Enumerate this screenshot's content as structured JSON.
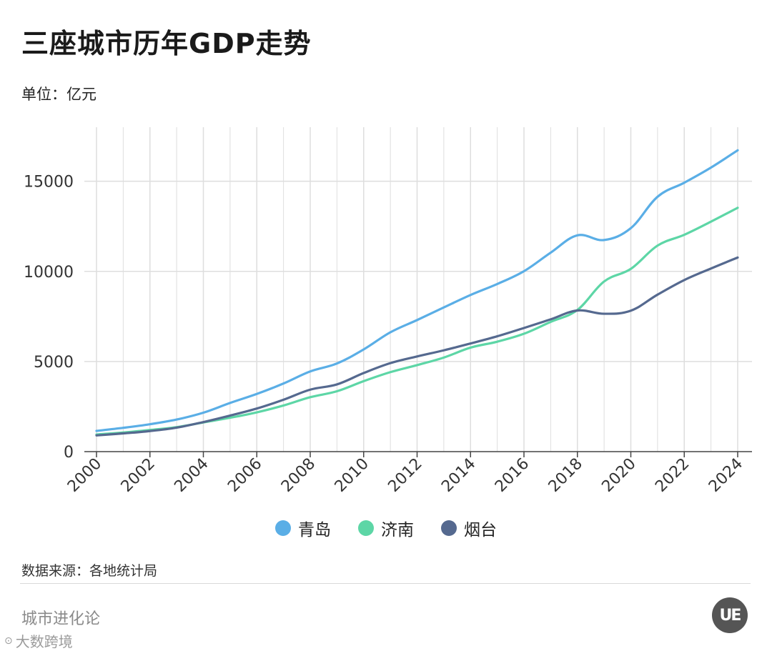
{
  "title": "三座城市历年GDP走势",
  "unit": "单位：亿元",
  "source": "数据来源：各地统计局",
  "brand": "城市进化论",
  "watermark": "大数跨境",
  "logo_text": "UE",
  "colors": {
    "qingdao": "#5aaee6",
    "jinan": "#5dd6a6",
    "yantai": "#55698f",
    "grid": "#dedede"
  },
  "chart_data": {
    "type": "line",
    "title": "三座城市历年GDP走势",
    "ylabel": "单位：亿元",
    "xlabel": "",
    "x": [
      2000,
      2001,
      2002,
      2003,
      2004,
      2005,
      2006,
      2007,
      2008,
      2009,
      2010,
      2011,
      2012,
      2013,
      2014,
      2015,
      2016,
      2017,
      2018,
      2019,
      2020,
      2021,
      2022,
      2023,
      2024
    ],
    "xticks": [
      "2000",
      "2002",
      "2004",
      "2006",
      "2008",
      "2010",
      "2012",
      "2014",
      "2016",
      "2018",
      "2020",
      "2022",
      "2024"
    ],
    "yticks": [
      0,
      5000,
      10000,
      15000
    ],
    "ylim": [
      0,
      18000
    ],
    "xlim": [
      2000,
      2024
    ],
    "grid": true,
    "legend_position": "bottom",
    "series": [
      {
        "name": "青岛",
        "color": "#5aaee6",
        "values": [
          1150,
          1320,
          1520,
          1780,
          2160,
          2700,
          3200,
          3780,
          4450,
          4890,
          5670,
          6620,
          7300,
          8000,
          8690,
          9300,
          10010,
          11040,
          12000,
          11740,
          12400,
          14140,
          14920,
          15760,
          16720
        ]
      },
      {
        "name": "济南",
        "color": "#5dd6a6",
        "values": [
          950,
          1060,
          1200,
          1360,
          1620,
          1880,
          2180,
          2560,
          3020,
          3350,
          3910,
          4410,
          4800,
          5220,
          5770,
          6100,
          6540,
          7200,
          7860,
          9440,
          10140,
          11430,
          12030,
          12760,
          13530
        ]
      },
      {
        "name": "烟台",
        "color": "#55698f",
        "values": [
          900,
          1010,
          1140,
          1330,
          1640,
          2000,
          2390,
          2880,
          3440,
          3730,
          4360,
          4910,
          5280,
          5620,
          6000,
          6400,
          6860,
          7340,
          7830,
          7650,
          7820,
          8710,
          9520,
          10160,
          10770
        ]
      }
    ]
  }
}
